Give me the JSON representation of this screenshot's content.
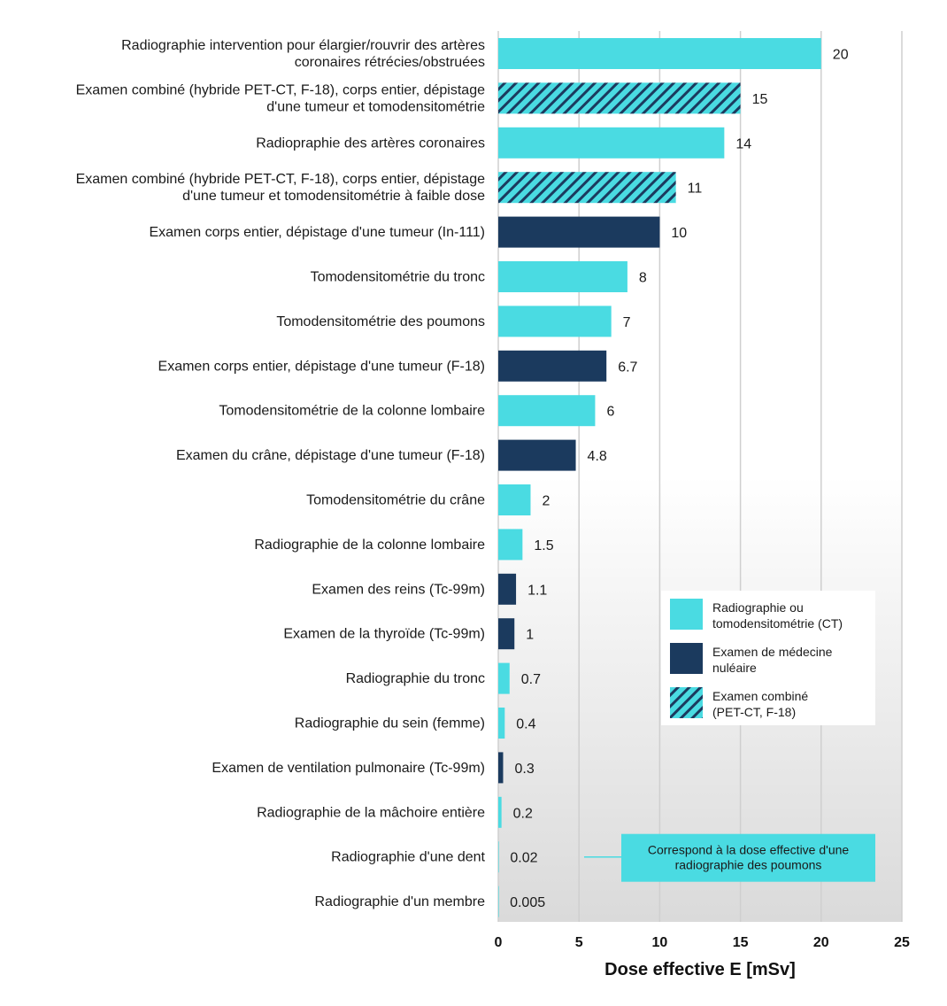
{
  "chart_data": {
    "type": "bar",
    "orientation": "horizontal",
    "title": "",
    "xlabel": "Dose effective E [mSv]",
    "ylabel": "",
    "xlim": [
      0,
      25
    ],
    "xticks": [
      0,
      5,
      10,
      15,
      20,
      25
    ],
    "grid": true,
    "legend_position": "bottom-right",
    "colors": {
      "ct": "#4adbe2",
      "nuclear": "#1b3a5e",
      "combined_base": "#4adbe2",
      "combined_stripe": "#1b3a5e"
    },
    "series_types": [
      {
        "key": "ct",
        "name": "Radiographie ou tomodensitométrie (CT)",
        "lines": [
          "Radiographie ou",
          "tomodensitométrie (CT)"
        ]
      },
      {
        "key": "nuclear",
        "name": "Examen de médecine nuléaire",
        "lines": [
          "Examen de médecine",
          "nuléaire"
        ]
      },
      {
        "key": "combined",
        "name": "Examen combiné (PET-CT, F-18)",
        "lines": [
          "Examen combiné",
          "(PET-CT, F-18)"
        ]
      }
    ],
    "bars": [
      {
        "lines": [
          "Radiographie intervention pour élargier/rouvrir des artères",
          "coronaires rétrécies/obstruées"
        ],
        "value": 20,
        "label": "20",
        "type": "ct"
      },
      {
        "lines": [
          "Examen combiné (hybride PET-CT, F-18), corps entier, dépistage",
          "d'une tumeur et tomodensitométrie"
        ],
        "value": 15,
        "label": "15",
        "type": "combined"
      },
      {
        "lines": [
          "Radiopraphie des artères coronaires"
        ],
        "value": 14,
        "label": "14",
        "type": "ct"
      },
      {
        "lines": [
          "Examen combiné (hybride PET-CT, F-18), corps entier, dépistage",
          "d'une tumeur et tomodensitométrie à faible dose"
        ],
        "value": 11,
        "label": "11",
        "type": "combined"
      },
      {
        "lines": [
          "Examen corps entier, dépistage d'une tumeur (In-111)"
        ],
        "value": 10,
        "label": "10",
        "type": "nuclear"
      },
      {
        "lines": [
          "Tomodensitométrie du tronc"
        ],
        "value": 8,
        "label": "8",
        "type": "ct"
      },
      {
        "lines": [
          "Tomodensitométrie des poumons"
        ],
        "value": 7,
        "label": "7",
        "type": "ct"
      },
      {
        "lines": [
          "Examen corps entier, dépistage d'une tumeur (F-18)"
        ],
        "value": 6.7,
        "label": "6.7",
        "type": "nuclear"
      },
      {
        "lines": [
          "Tomodensitométrie de la colonne lombaire"
        ],
        "value": 6,
        "label": "6",
        "type": "ct"
      },
      {
        "lines": [
          "Examen du crâne, dépistage d'une tumeur (F-18)"
        ],
        "value": 4.8,
        "label": "4.8",
        "type": "nuclear"
      },
      {
        "lines": [
          "Tomodensitométrie du crâne"
        ],
        "value": 2,
        "label": "2",
        "type": "ct"
      },
      {
        "lines": [
          "Radiographie de la colonne lombaire"
        ],
        "value": 1.5,
        "label": "1.5",
        "type": "ct"
      },
      {
        "lines": [
          "Examen des reins (Tc-99m)"
        ],
        "value": 1.1,
        "label": "1.1",
        "type": "nuclear"
      },
      {
        "lines": [
          "Examen de la thyroïde (Tc-99m)"
        ],
        "value": 1,
        "label": "1",
        "type": "nuclear"
      },
      {
        "lines": [
          "Radiographie du tronc"
        ],
        "value": 0.7,
        "label": "0.7",
        "type": "ct"
      },
      {
        "lines": [
          "Radiographie du sein (femme)"
        ],
        "value": 0.4,
        "label": "0.4",
        "type": "ct"
      },
      {
        "lines": [
          "Examen de ventilation pulmonaire (Tc-99m)"
        ],
        "value": 0.3,
        "label": "0.3",
        "type": "nuclear"
      },
      {
        "lines": [
          "Radiographie de la mâchoire entière"
        ],
        "value": 0.2,
        "label": "0.2",
        "type": "ct"
      },
      {
        "lines": [
          "Radiographie d'une dent"
        ],
        "value": 0.02,
        "label": "0.02",
        "type": "ct"
      },
      {
        "lines": [
          "Radiographie d'un membre"
        ],
        "value": 0.005,
        "label": "0.005",
        "type": "ct"
      }
    ],
    "annotations": [
      {
        "target_index": 18,
        "lines": [
          "Correspond à la dose effective d'une",
          "radiographie des poumons"
        ],
        "background": "#4adbe2"
      }
    ]
  }
}
